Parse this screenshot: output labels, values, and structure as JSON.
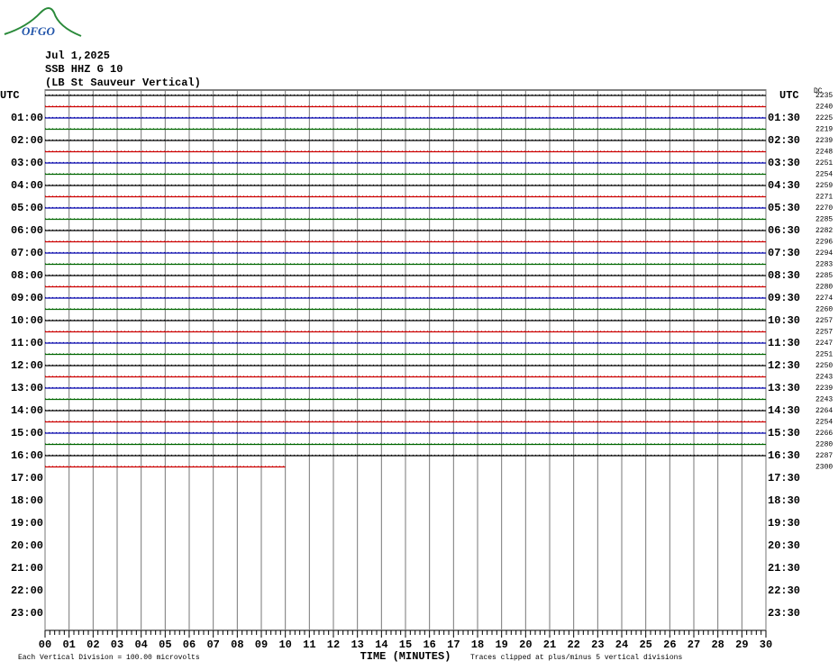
{
  "chart_data": {
    "type": "helicorder",
    "logo": "OFGO",
    "title_lines": [
      "Jul 1,2025",
      "SSB HHZ G 10",
      "(LB St Sauveur Vertical)"
    ],
    "xlabel": "TIME (MINUTES)",
    "note_left": "Each Vertical Division =  100.00 microvolts",
    "note_right": "Traces clipped at plus/minus 5 vertical divisions",
    "dc_label": "DC",
    "left_labels": [
      "UTC",
      "01:00",
      "02:00",
      "03:00",
      "04:00",
      "05:00",
      "06:00",
      "07:00",
      "08:00",
      "09:00",
      "10:00",
      "11:00",
      "12:00",
      "13:00",
      "14:00",
      "15:00",
      "16:00",
      "17:00",
      "18:00",
      "19:00",
      "20:00",
      "21:00",
      "22:00",
      "23:00"
    ],
    "right_labels": [
      "UTC",
      "01:30",
      "02:30",
      "03:30",
      "04:30",
      "05:30",
      "06:30",
      "07:30",
      "08:30",
      "09:30",
      "10:30",
      "11:30",
      "12:30",
      "13:30",
      "14:30",
      "15:30",
      "16:30",
      "17:30",
      "18:30",
      "19:30",
      "20:30",
      "21:30",
      "22:30",
      "23:30"
    ],
    "trace_colors": [
      "#000000",
      "#cc0000",
      "#0000aa",
      "#006600"
    ],
    "offsets": [
      2235,
      2240,
      2225,
      2219,
      2239,
      2248,
      2251,
      2254,
      2259,
      2271,
      2270,
      2285,
      2282,
      2296,
      2294,
      2283,
      2285,
      2280,
      2274,
      2260,
      2257,
      2257,
      2247,
      2251,
      2250,
      2243,
      2239,
      2243,
      2264,
      2254,
      2266,
      2280,
      2287,
      2300
    ],
    "last_trace_end": 10,
    "xlim": [
      0,
      30
    ],
    "xticks": [
      {
        "value": 0,
        "label": "00"
      },
      {
        "value": 1,
        "label": "01"
      },
      {
        "value": 2,
        "label": "02"
      },
      {
        "value": 3,
        "label": "03"
      },
      {
        "value": 4,
        "label": "04"
      },
      {
        "value": 5,
        "label": "05"
      },
      {
        "value": 6,
        "label": "06"
      },
      {
        "value": 7,
        "label": "07"
      },
      {
        "value": 8,
        "label": "08"
      },
      {
        "value": 9,
        "label": "09"
      },
      10,
      11,
      12,
      13,
      14,
      15,
      16,
      17,
      18,
      19,
      20,
      21,
      22,
      23,
      24,
      25,
      26,
      27,
      28,
      29,
      30
    ],
    "grid": true
  }
}
